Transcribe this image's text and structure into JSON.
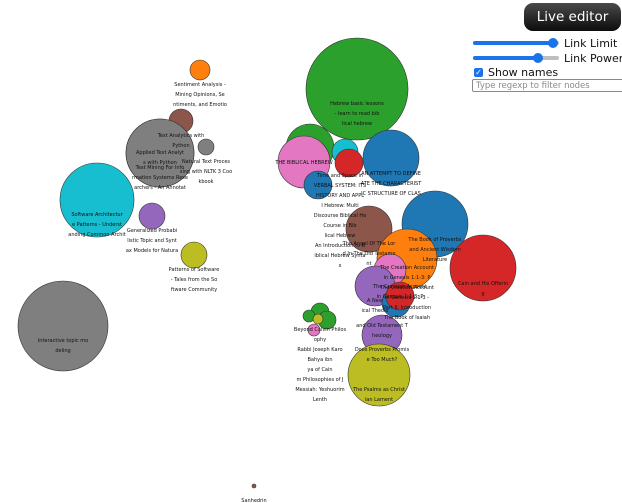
{
  "editor": {
    "title": "Live editor"
  },
  "controls": {
    "link_limit": {
      "label": "Link Limit",
      "value": 0.93
    },
    "link_power": {
      "label": "Link Power",
      "value": 0.76
    },
    "show_names": {
      "label": "Show names",
      "checked": true
    },
    "filter": {
      "placeholder": "Type regexp to filter nodes",
      "value": ""
    }
  },
  "nodes": [
    {
      "id": "sentiment",
      "color": "#ff7f0e",
      "lines": [
        "Sentiment Analysis -",
        "Mining Opinions, Se",
        "ntiments, and Emotio"
      ]
    },
    {
      "id": "text-analytics",
      "color": "#8c564b",
      "lines": [
        "Text Analytics with",
        "Python"
      ]
    },
    {
      "id": "applied-text",
      "color": "#7f7f7f",
      "lines": [
        "Applied Text Analyt",
        "s with Python"
      ]
    },
    {
      "id": "text-mining",
      "color": "#7f7f7f",
      "lines": [
        "Text Mining For Info",
        "rmation Systems Rese",
        "archers - An Annotat"
      ]
    },
    {
      "id": "nltk",
      "color": "#7f7f7f",
      "lines": [
        "Natural Text Proces",
        "sing with NLTK 3 Coo",
        "kbook"
      ]
    },
    {
      "id": "software-arch",
      "color": "#17becf",
      "lines": [
        "Software Architectur",
        "e Patterns - Underst",
        "anding Common Archit"
      ]
    },
    {
      "id": "gen-prob",
      "color": "#9467bd",
      "lines": [
        "Generalized Probabi",
        "listic Topic and Synt",
        "ax Models for Natura"
      ]
    },
    {
      "id": "patterns",
      "color": "#bcbd22",
      "lines": [
        "Patterns of Software",
        "- Tales from the So",
        "ftware Community"
      ]
    },
    {
      "id": "interactive",
      "color": "#7f7f7f",
      "lines": [
        "Interactive topic mo",
        "deling"
      ]
    },
    {
      "id": "hebrew-lessons",
      "color": "#2ca02c",
      "lines": [
        "Hebrew basic lessons",
        "- learn to read bib",
        "lical hebrew"
      ]
    },
    {
      "id": "green-small",
      "color": "#2ca02c",
      "lines": []
    },
    {
      "id": "biblical-hebrew",
      "color": "#e377c2",
      "lines": [
        "THE BIBLICAL HEBREW"
      ]
    },
    {
      "id": "book-cyan",
      "color": "#17becf",
      "lines": []
    },
    {
      "id": "red-small",
      "color": "#d62728",
      "lines": []
    },
    {
      "id": "blue-small",
      "color": "#1f77b4",
      "lines": []
    },
    {
      "id": "intro-biblical",
      "color": "#7f7f7f",
      "lines": [
        "Time and Space in",
        "VERBAL SYSTEM: ITS",
        "HISTORY AND APPL",
        "l Hebrew: Multi",
        "Discourse Biblical He",
        "Course in Bib",
        "lical Hebrew",
        "An Introduction to B",
        "iblical Hebrew Synta",
        "x"
      ]
    },
    {
      "id": "attempt",
      "color": "#1f77b4",
      "lines": [
        "AN ATTEMPT TO DEFINE",
        "ATE THE CHARACTERIST",
        "IC STRUCTURE OF CLAS"
      ]
    },
    {
      "id": "angel",
      "color": "#8c564b",
      "lines": [
        "The Angel Of The Lor",
        "d In The Old Testame",
        "nt"
      ]
    },
    {
      "id": "proverbs",
      "color": "#1f77b4",
      "lines": [
        "The Book of Proverbs",
        "and Ancient Wisdom",
        "Literature"
      ]
    },
    {
      "id": "cain",
      "color": "#d62728",
      "lines": [
        "Cain and His Offerin",
        "g"
      ]
    },
    {
      "id": "creation-orange",
      "color": "#ff7f0e",
      "lines": [
        "The Creation Account",
        "in Genesis 1:1-3: P",
        "The Creation Account",
        "in Genesis 1:1-3 -",
        "Part II: Introduction",
        "The Book of Isaiah"
      ]
    },
    {
      "id": "creation-pink",
      "color": "#e377c2",
      "lines": []
    },
    {
      "id": "creation-purple",
      "color": "#9467bd",
      "lines": [
        "A New",
        "ical Theolo"
      ]
    },
    {
      "id": "creation-blue",
      "color": "#1f77b4",
      "lines": []
    },
    {
      "id": "creation-red",
      "color": "#d62728",
      "lines": [
        "The Creation Account",
        "in Genesis 1:1-3: P"
      ]
    },
    {
      "id": "theology",
      "color": "#9467bd",
      "lines": [
        "and Old Testament T",
        "heology"
      ]
    },
    {
      "id": "proverbs-much",
      "color": "#9467bd",
      "lines": [
        "Does Proverbs Promis",
        "e Too Much?"
      ]
    },
    {
      "id": "psalms",
      "color": "#bcbd22",
      "lines": [
        "The Psalms as Christ",
        "ian Lament"
      ]
    },
    {
      "id": "cluster-1",
      "color": "#2ca02c",
      "lines": [
        "Beyond Calvin Philos",
        "ophy",
        "Rabbi Joseph Karo",
        "Bahya ibn",
        "ya of Cain",
        "m Philosophies of J",
        "Messiah: Yeshuorim",
        "Lenth"
      ]
    },
    {
      "id": "cluster-2",
      "color": "#2ca02c",
      "lines": []
    },
    {
      "id": "cluster-3",
      "color": "#2ca02c",
      "lines": []
    },
    {
      "id": "cluster-4",
      "color": "#bcbd22",
      "lines": []
    },
    {
      "id": "cluster-5",
      "color": "#e377c2",
      "lines": []
    },
    {
      "id": "sanhedrin",
      "color": "#8c564b",
      "lines": [
        "Sanhedrin"
      ]
    }
  ]
}
